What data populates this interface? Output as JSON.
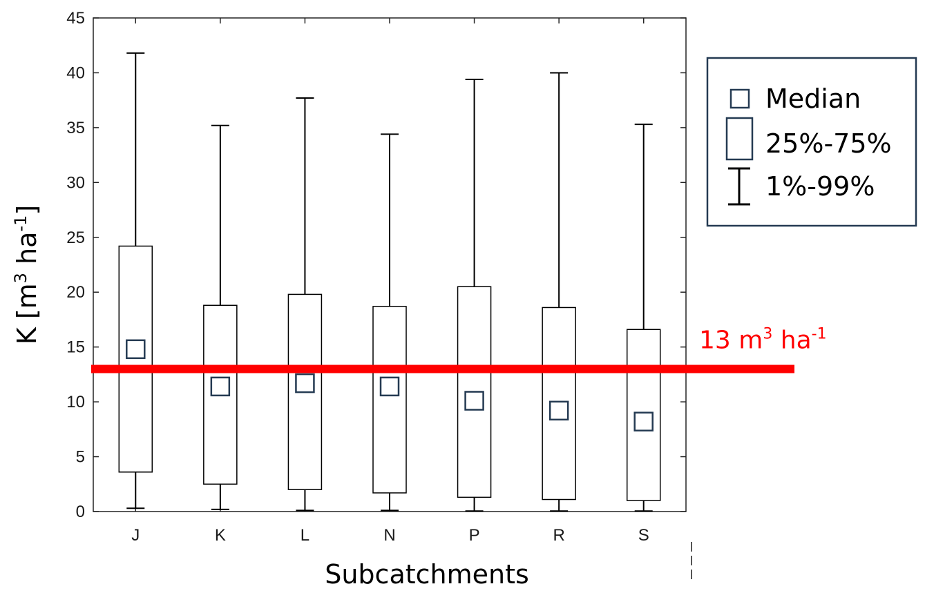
{
  "chart_data": {
    "type": "box",
    "xlabel": "Subcatchments",
    "ylabel": {
      "main": "K [m",
      "sup1": "3",
      "mid": " ha",
      "sup2": "-1",
      "end": "]"
    },
    "ylim": [
      0,
      45
    ],
    "yticks": [
      0,
      5,
      10,
      15,
      20,
      25,
      30,
      35,
      40,
      45
    ],
    "categories": [
      "J",
      "K",
      "L",
      "N",
      "P",
      "R",
      "S"
    ],
    "series": [
      {
        "category": "J",
        "p1": 0.3,
        "q1": 3.6,
        "median": 14.8,
        "q3": 24.2,
        "p99": 41.8
      },
      {
        "category": "K",
        "p1": 0.2,
        "q1": 2.5,
        "median": 11.4,
        "q3": 18.8,
        "p99": 35.2
      },
      {
        "category": "L",
        "p1": 0.1,
        "q1": 2.0,
        "median": 11.7,
        "q3": 19.8,
        "p99": 37.7
      },
      {
        "category": "N",
        "p1": 0.1,
        "q1": 1.7,
        "median": 11.4,
        "q3": 18.7,
        "p99": 34.4
      },
      {
        "category": "P",
        "p1": 0.05,
        "q1": 1.3,
        "median": 10.1,
        "q3": 20.5,
        "p99": 39.4
      },
      {
        "category": "R",
        "p1": 0.05,
        "q1": 1.1,
        "median": 9.2,
        "q3": 18.6,
        "p99": 40.0
      },
      {
        "category": "S",
        "p1": 0.05,
        "q1": 1.0,
        "median": 8.2,
        "q3": 16.6,
        "p99": 35.3
      }
    ],
    "reference_line": {
      "value": 13.0,
      "label": {
        "main": "13 m",
        "sup1": "3",
        "mid": " ha",
        "sup2": "-1"
      },
      "color": "#ff0000"
    },
    "legend": {
      "placement": "right",
      "items": [
        {
          "symbol": "median-square",
          "label": "Median"
        },
        {
          "symbol": "box",
          "label": "25%-75%"
        },
        {
          "symbol": "whisker",
          "label": "1%-99%"
        }
      ]
    },
    "grid": false
  },
  "colors": {
    "median_marker": "#243a52",
    "legend_border": "#243a52",
    "box_stroke": "#000000"
  }
}
